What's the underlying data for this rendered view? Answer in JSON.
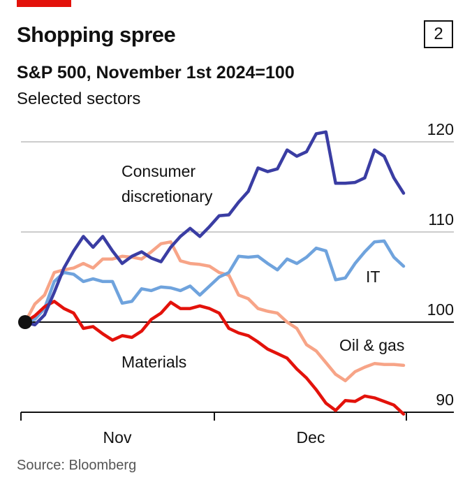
{
  "chart_data": {
    "type": "line",
    "title": "Shopping spree",
    "badge": "2",
    "subtitle": "S&P 500, November 1st 2024=100",
    "subtitle2": "Selected sectors",
    "source": "Source: Bloomberg",
    "month_labels": [
      "Nov",
      "Dec"
    ],
    "ylim": [
      90,
      120
    ],
    "yticks": [
      90,
      100,
      110,
      120
    ],
    "grid": true,
    "series": [
      {
        "name": "Consumer discretionary",
        "color": "#3a3da3",
        "values": [
          100,
          99.7,
          100.8,
          103.3,
          106,
          107.9,
          109.5,
          108.3,
          109.5,
          107.9,
          106.5,
          107.3,
          107.8,
          107.1,
          106.7,
          108.3,
          109.5,
          110.4,
          109.5,
          110.6,
          111.8,
          111.9,
          113.3,
          114.5,
          117.1,
          116.7,
          117,
          119.1,
          118.4,
          118.9,
          120.9,
          121.1,
          115.4,
          115.4,
          115.5,
          116,
          119.1,
          118.4,
          116,
          114.3
        ]
      },
      {
        "name": "IT",
        "color": "#6fa3dd",
        "values": [
          100,
          100.3,
          101.5,
          104.5,
          105.5,
          105.3,
          104.5,
          104.8,
          104.5,
          104.5,
          102.1,
          102.3,
          103.7,
          103.5,
          103.9,
          103.8,
          103.5,
          104,
          103,
          104,
          105,
          105.5,
          107.3,
          107.2,
          107.3,
          106.5,
          105.8,
          107,
          106.5,
          107.2,
          108.2,
          107.9,
          104.7,
          104.9,
          106.5,
          107.8,
          108.9,
          109,
          107.2,
          106.2
        ]
      },
      {
        "name": "Oil & gas",
        "color": "#f7a487",
        "values": [
          100,
          102,
          103,
          105.5,
          105.8,
          106,
          106.5,
          106,
          107,
          107,
          107.3,
          107.2,
          107,
          107.8,
          108.7,
          108.9,
          106.8,
          106.5,
          106.4,
          106.2,
          105.5,
          105.2,
          103,
          102.6,
          101.5,
          101.2,
          101,
          100,
          99.3,
          97.5,
          96.8,
          95.5,
          94.2,
          93.5,
          94.5,
          95,
          95.4,
          95.3,
          95.3,
          95.2
        ]
      },
      {
        "name": "Materials",
        "color": "#e3120b",
        "values": [
          100,
          100.7,
          101.7,
          102.3,
          101.5,
          101,
          99.3,
          99.5,
          98.7,
          98,
          98.5,
          98.3,
          99,
          100.3,
          101,
          102.2,
          101.5,
          101.5,
          101.8,
          101.5,
          101,
          99.3,
          98.8,
          98.5,
          97.8,
          97,
          96.5,
          96,
          94.8,
          93.8,
          92.5,
          91,
          90.2,
          91.3,
          91.2,
          91.8,
          91.6,
          91.2,
          90.8,
          89.8
        ]
      }
    ]
  }
}
